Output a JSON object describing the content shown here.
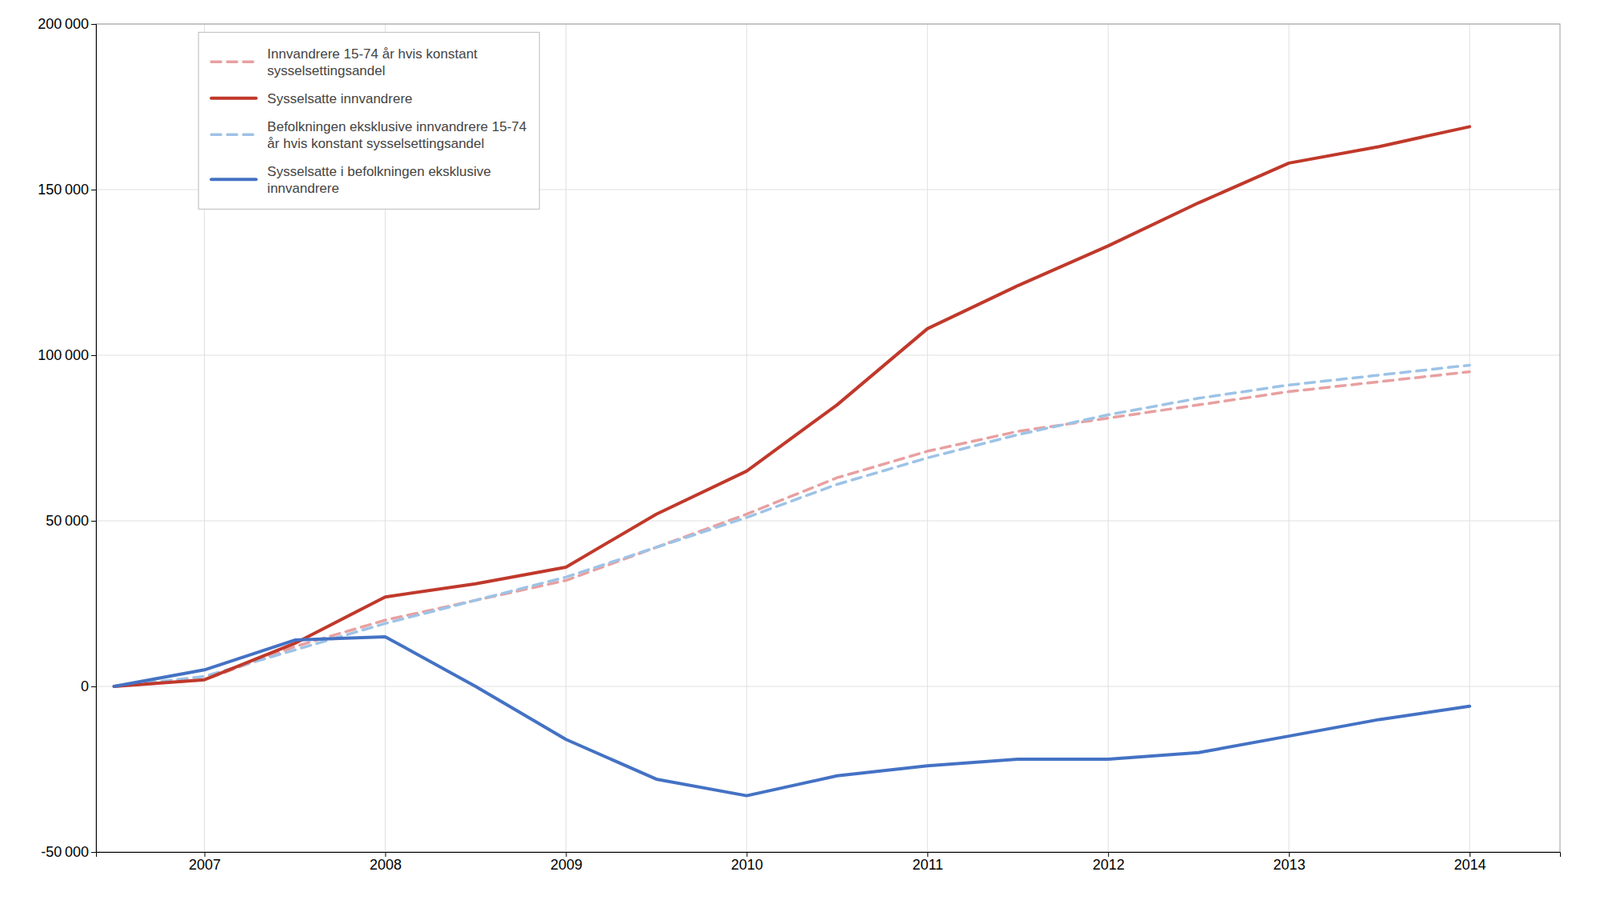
{
  "chart_data": {
    "type": "line",
    "x": [
      2006.5,
      2007,
      2007.5,
      2008,
      2008.5,
      2009,
      2009.5,
      2010,
      2010.5,
      2011,
      2011.5,
      2012,
      2012.5,
      2013,
      2013.5,
      2014
    ],
    "series": [
      {
        "name": "Innvandrere 15-74 år hvis konstant\nsysselsettingsandel",
        "color": "#e8a0a0",
        "line_style": "dashed",
        "values": [
          0,
          2000,
          12000,
          20000,
          26000,
          32000,
          42000,
          52000,
          63000,
          71000,
          77000,
          81000,
          85000,
          89000,
          92000,
          95000
        ]
      },
      {
        "name": "Sysselsatte innvandrere",
        "color": "#c0392b",
        "line_style": "solid",
        "values": [
          0,
          2000,
          13000,
          27000,
          31000,
          36000,
          52000,
          65000,
          85000,
          108000,
          121000,
          133000,
          146000,
          158000,
          163000,
          169000
        ]
      },
      {
        "name": "Befolkningen eksklusive innvandrere 15-74\når hvis konstant sysselsettingsandel",
        "color": "#9dc3e6",
        "line_style": "dashed",
        "values": [
          0,
          3000,
          11000,
          19000,
          26000,
          33000,
          42000,
          51000,
          61000,
          69000,
          76000,
          82000,
          87000,
          91000,
          94000,
          97000
        ]
      },
      {
        "name": "Sysselsatte i befolkningen eksklusive\ninnvandrere",
        "color": "#4472c4",
        "line_style": "solid",
        "values": [
          0,
          5000,
          14000,
          15000,
          0,
          -16000,
          -28000,
          -33000,
          -27000,
          -24000,
          -22000,
          -22000,
          -20000,
          -15000,
          -10000,
          -6000
        ]
      }
    ],
    "xlim": [
      2006.4,
      2014.5
    ],
    "xticks": [
      2007,
      2008,
      2009,
      2010,
      2011,
      2012,
      2013,
      2014
    ],
    "ylim": [
      -50000,
      200000
    ],
    "yticks": [
      {
        "value": -50000,
        "label": "-50 000"
      },
      0,
      {
        "value": 50000,
        "label": "50 000"
      },
      {
        "value": 100000,
        "label": "100 000"
      },
      {
        "value": 150000,
        "label": "150 000"
      },
      {
        "value": 200000,
        "label": "200 000"
      }
    ],
    "grid": true,
    "legend": "upper left"
  }
}
